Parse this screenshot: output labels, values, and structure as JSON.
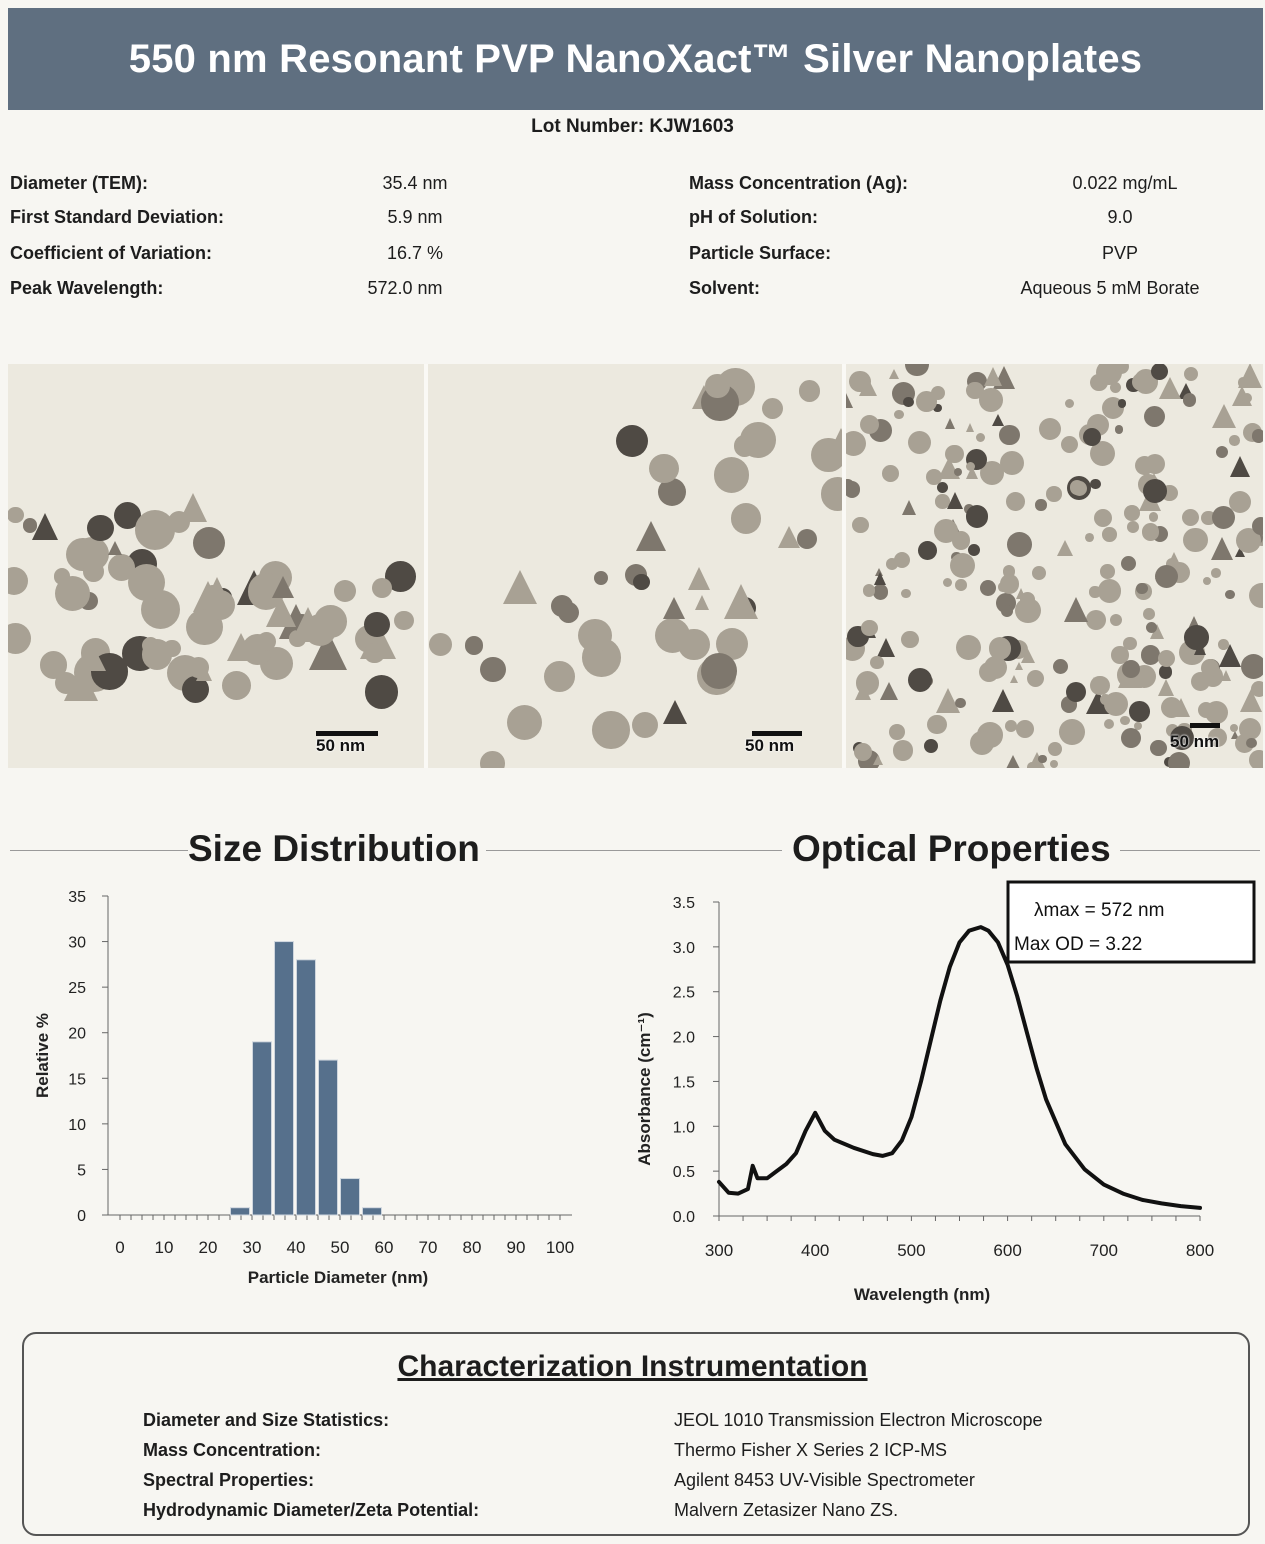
{
  "title": "550 nm Resonant PVP NanoXact™ Silver Nanoplates",
  "lot": "Lot Number: KJW1603",
  "specs_left": [
    {
      "label": "Diameter (TEM):",
      "value": "35.4 nm"
    },
    {
      "label": "First Standard Deviation:",
      "value": "5.9 nm"
    },
    {
      "label": "Coefficient of Variation:",
      "value": "16.7 %"
    },
    {
      "label": "Peak Wavelength:",
      "value": "572.0 nm"
    }
  ],
  "specs_right": [
    {
      "label": "Mass Concentration (Ag):",
      "value": "0.022 mg/mL"
    },
    {
      "label": "pH of Solution:",
      "value": "9.0"
    },
    {
      "label": "Particle Surface:",
      "value": "PVP"
    },
    {
      "label": "Solvent:",
      "value": "Aqueous 5 mM Borate"
    }
  ],
  "tem_scale_labels": [
    "50 nm",
    "50 nm",
    "50 nm"
  ],
  "size_distribution": {
    "title": "Size Distribution"
  },
  "optical": {
    "title": "Optical Properties",
    "annotation_line1": "λmax  =  572 nm",
    "annotation_line2": "Max OD =  3.22"
  },
  "chart_data": [
    {
      "type": "bar",
      "xlabel": "Particle Diameter (nm)",
      "ylabel": "Relative %",
      "xlim": [
        0,
        100
      ],
      "ylim": [
        0,
        35
      ],
      "xticks": [
        0,
        10,
        20,
        30,
        40,
        50,
        60,
        70,
        80,
        90,
        100
      ],
      "yticks": [
        0,
        5,
        10,
        15,
        20,
        25,
        30,
        35
      ],
      "x": [
        25,
        30,
        35,
        40,
        45,
        50,
        55
      ],
      "values": [
        0.8,
        19,
        30,
        28,
        17,
        4,
        0.8
      ],
      "color": "#56708c",
      "grid": false
    },
    {
      "type": "line",
      "xlabel": "Wavelength (nm)",
      "ylabel": "Absorbance (cm⁻¹)",
      "xlim": [
        300,
        800
      ],
      "ylim": [
        0,
        3.5
      ],
      "xticks": [
        300,
        400,
        500,
        600,
        700,
        800
      ],
      "yticks": [
        "0.0",
        "0.5",
        "1.0",
        "1.5",
        "2.0",
        "2.5",
        "3.0",
        "3.5"
      ],
      "x": [
        300,
        310,
        320,
        330,
        335,
        340,
        350,
        360,
        370,
        380,
        390,
        400,
        405,
        410,
        420,
        440,
        460,
        470,
        480,
        490,
        500,
        510,
        520,
        530,
        540,
        550,
        560,
        572,
        580,
        590,
        600,
        610,
        620,
        630,
        640,
        660,
        680,
        700,
        720,
        740,
        760,
        780,
        800
      ],
      "y": [
        0.38,
        0.26,
        0.25,
        0.3,
        0.56,
        0.42,
        0.42,
        0.5,
        0.58,
        0.7,
        0.95,
        1.15,
        1.05,
        0.95,
        0.85,
        0.76,
        0.69,
        0.67,
        0.7,
        0.84,
        1.1,
        1.5,
        1.95,
        2.4,
        2.78,
        3.05,
        3.18,
        3.22,
        3.18,
        3.05,
        2.8,
        2.45,
        2.05,
        1.65,
        1.3,
        0.8,
        0.52,
        0.35,
        0.25,
        0.18,
        0.14,
        0.11,
        0.09
      ],
      "color": "#111111",
      "grid": false
    }
  ],
  "instrumentation": {
    "title": "Characterization Instrumentation",
    "rows": [
      {
        "label": "Diameter and Size Statistics:",
        "value": "JEOL 1010 Transmission Electron Microscope"
      },
      {
        "label": "Mass Concentration:",
        "value": "Thermo Fisher X Series 2 ICP-MS"
      },
      {
        "label": "Spectral Properties:",
        "value": "Agilent 8453 UV-Visible Spectrometer"
      },
      {
        "label": "Hydrodynamic Diameter/Zeta Potential:",
        "value": "Malvern Zetasizer Nano ZS."
      }
    ]
  }
}
